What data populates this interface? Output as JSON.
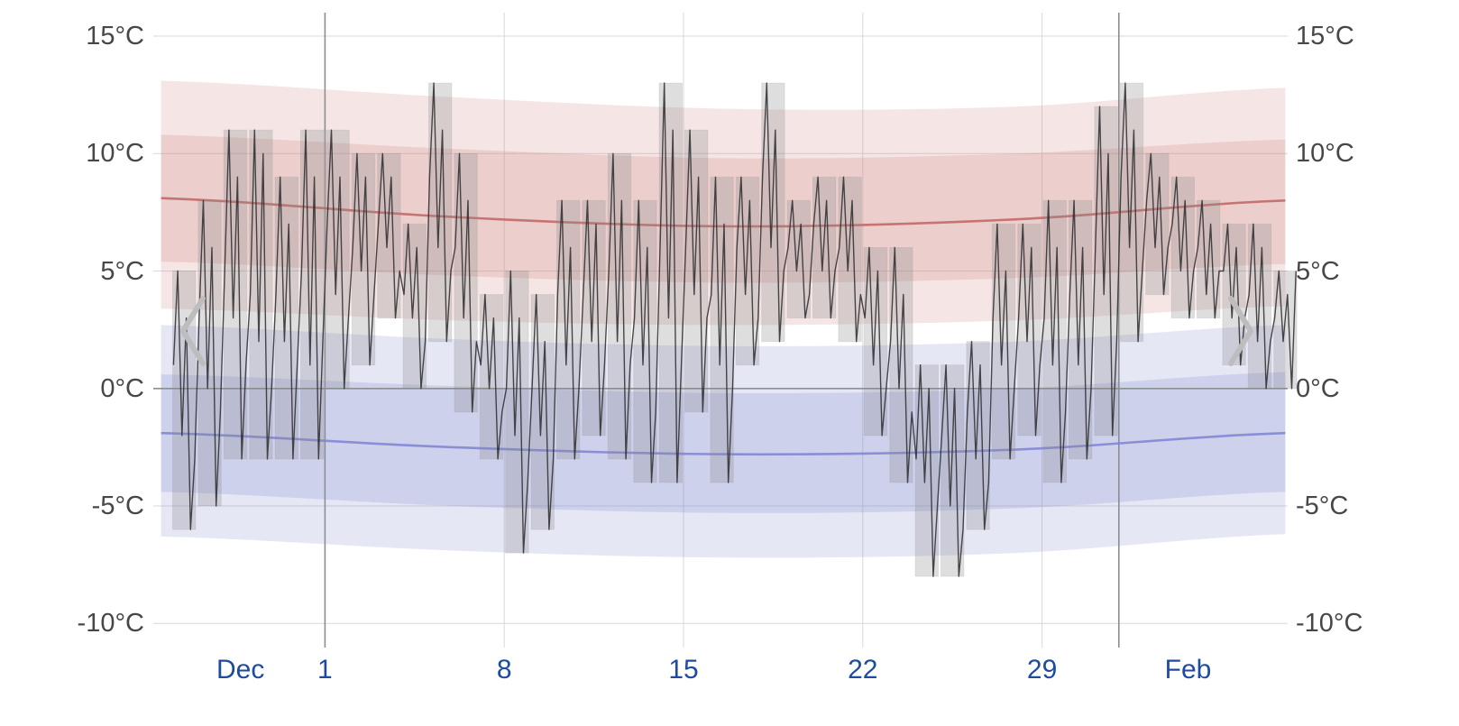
{
  "chart_data": {
    "type": "line",
    "y_axis": {
      "unit": "°C",
      "shown_on_both_sides": true,
      "ylim": [
        -11.5,
        16
      ],
      "ticks": [
        {
          "label": "15°C",
          "value": 15
        },
        {
          "label": "10°C",
          "value": 10
        },
        {
          "label": "5°C",
          "value": 5
        },
        {
          "label": "0°C",
          "value": 0
        },
        {
          "label": "-5°C",
          "value": -5
        },
        {
          "label": "-10°C",
          "value": -10
        }
      ]
    },
    "x_axis": {
      "total_days": 44,
      "tick_labels": [
        {
          "label": "Dec",
          "day": 2.7
        },
        {
          "label": "1",
          "day": 6
        },
        {
          "label": "8",
          "day": 13
        },
        {
          "label": "15",
          "day": 20
        },
        {
          "label": "22",
          "day": 27
        },
        {
          "label": "29",
          "day": 34
        },
        {
          "label": "Feb",
          "day": 39.7
        }
      ],
      "minor_gridline_days": [
        13,
        20,
        27,
        34
      ],
      "major_gridline_days": [
        6,
        37
      ]
    },
    "climate": {
      "control_days": [
        -0.4,
        11,
        22,
        33,
        43.5
      ],
      "high": {
        "outer_upper": [
          13.1,
          12.4,
          11.9,
          12.0,
          12.8
        ],
        "inner_upper": [
          10.8,
          10.2,
          9.8,
          10.0,
          10.6
        ],
        "mean": [
          8.1,
          7.3,
          6.9,
          7.2,
          8.0
        ],
        "inner_lower": [
          5.4,
          4.8,
          4.5,
          4.7,
          5.3
        ],
        "outer_lower": [
          3.4,
          2.9,
          2.7,
          2.9,
          3.5
        ]
      },
      "low": {
        "outer_upper": [
          2.7,
          2.1,
          1.8,
          2.0,
          2.7
        ],
        "inner_upper": [
          0.6,
          0.1,
          -0.2,
          0.0,
          0.7
        ],
        "mean": [
          -1.9,
          -2.5,
          -2.8,
          -2.6,
          -1.9
        ],
        "inner_lower": [
          -4.4,
          -5.0,
          -5.3,
          -5.1,
          -4.4
        ],
        "outer_lower": [
          -6.3,
          -6.9,
          -7.2,
          -7.0,
          -6.2
        ]
      }
    },
    "daily_range": {
      "high": [
        5,
        8,
        11,
        11,
        9,
        11,
        11,
        10,
        10,
        7,
        13,
        10,
        4,
        5,
        4,
        8,
        8,
        10,
        8,
        13,
        11,
        9,
        9,
        13,
        8,
        9,
        9,
        6,
        6,
        1,
        1,
        2,
        7,
        7,
        8,
        8,
        12,
        13,
        10,
        9,
        8,
        7,
        7,
        5
      ],
      "low": [
        -6,
        -5,
        -3,
        -3,
        -3,
        -3,
        0,
        1,
        3,
        0,
        2,
        -1,
        -3,
        -7,
        -6,
        -3,
        -2,
        -3,
        -4,
        -4,
        -1,
        -4,
        1,
        2,
        3,
        3,
        2,
        -2,
        -4,
        -8,
        -8,
        -6,
        -3,
        -2,
        -4,
        -3,
        -2,
        2,
        4,
        3,
        3,
        1,
        0,
        0
      ]
    },
    "temperature_series": {
      "points_per_day": 6,
      "daily_temps": [
        [
          1,
          5,
          -2,
          3,
          -6,
          -3
        ],
        [
          3,
          8,
          0,
          6,
          -5,
          -1
        ],
        [
          5,
          11,
          3,
          9,
          -3,
          1
        ],
        [
          4,
          11,
          2,
          10,
          -3,
          0
        ],
        [
          4,
          9,
          2,
          7,
          -3,
          1
        ],
        [
          5,
          11,
          1,
          9,
          -3,
          2
        ],
        [
          7,
          11,
          4,
          9,
          0,
          3
        ],
        [
          6,
          10,
          5,
          9,
          1,
          4
        ],
        [
          7,
          10,
          6,
          9,
          3,
          5
        ],
        [
          4,
          7,
          3,
          6,
          0,
          2
        ],
        [
          9,
          13,
          6,
          11,
          2,
          5
        ],
        [
          6,
          10,
          3,
          8,
          -1,
          2
        ],
        [
          1,
          4,
          0,
          3,
          -3,
          -1
        ],
        [
          0,
          5,
          -2,
          3,
          -7,
          -4
        ],
        [
          0,
          4,
          -2,
          2,
          -6,
          -3
        ],
        [
          4,
          8,
          1,
          6,
          -3,
          0
        ],
        [
          4,
          8,
          2,
          7,
          -2,
          1
        ],
        [
          5,
          10,
          2,
          8,
          -3,
          1
        ],
        [
          3,
          8,
          1,
          6,
          -4,
          -1
        ],
        [
          6,
          13,
          3,
          11,
          -4,
          1
        ],
        [
          6,
          11,
          4,
          9,
          -1,
          3
        ],
        [
          4,
          9,
          1,
          7,
          -4,
          0
        ],
        [
          6,
          9,
          4,
          8,
          1,
          3
        ],
        [
          9,
          13,
          6,
          11,
          2,
          5
        ],
        [
          6,
          8,
          5,
          7,
          3,
          4
        ],
        [
          7,
          9,
          5,
          8,
          3,
          5
        ],
        [
          6,
          9,
          5,
          8,
          2,
          4
        ],
        [
          3,
          6,
          1,
          5,
          -2,
          0
        ],
        [
          2,
          6,
          0,
          4,
          -4,
          -1
        ],
        [
          -3,
          1,
          -4,
          0,
          -8,
          -5
        ],
        [
          -2,
          1,
          -5,
          0,
          -8,
          -6
        ],
        [
          -1,
          2,
          -3,
          1,
          -6,
          -4
        ],
        [
          3,
          7,
          1,
          5,
          -3,
          0
        ],
        [
          3,
          7,
          2,
          6,
          -2,
          1
        ],
        [
          3,
          8,
          1,
          6,
          -4,
          -1
        ],
        [
          4,
          8,
          1,
          6,
          -3,
          0
        ],
        [
          6,
          12,
          4,
          10,
          -2,
          2
        ],
        [
          9,
          13,
          6,
          11,
          2,
          5
        ],
        [
          8,
          10,
          6,
          9,
          4,
          6
        ],
        [
          7,
          9,
          5,
          8,
          3,
          5
        ],
        [
          6,
          8,
          4,
          7,
          3,
          5
        ],
        [
          5,
          7,
          3,
          6,
          1,
          3
        ],
        [
          4,
          7,
          2,
          6,
          0,
          2
        ],
        [
          3,
          5,
          2,
          4,
          0,
          5
        ]
      ]
    }
  },
  "controls": {
    "prev_label": "Previous period",
    "next_label": "Next period"
  },
  "icons": {
    "prev": "chevron-left",
    "next": "chevron-right"
  },
  "colors": {
    "background": "#ffffff",
    "y_label": "#47474b",
    "x_label": "#1e4b9f",
    "grid_minor": "#d8d8da",
    "grid_major": "#8e8e92",
    "high_band": "#cb807c",
    "high_mean_line": "#bf6460",
    "low_band": "#7e85cc",
    "low_mean_line": "#7d83d4",
    "daily_bar": "#88888c",
    "temp_line": "#303032",
    "chevron": "#bdbdbf"
  }
}
